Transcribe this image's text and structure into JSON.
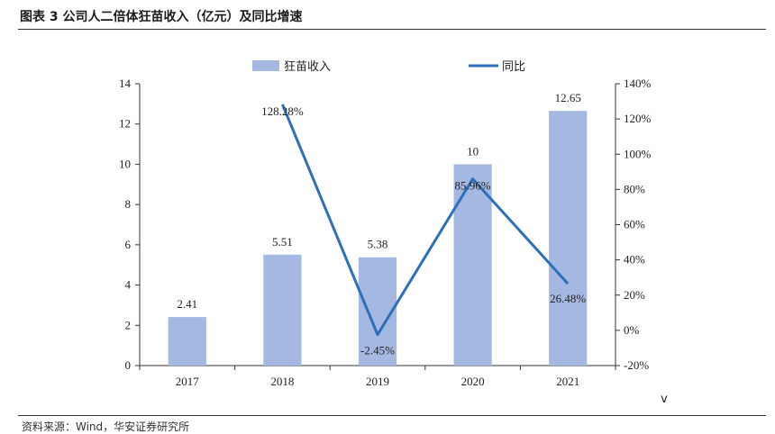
{
  "header": {
    "title": "图表 3 公司人二倍体狂苗收入（亿元）及同比增速"
  },
  "footer": {
    "source": "资料来源：Wind，华安证券研究所"
  },
  "colors": {
    "bar": "#a4b8e2",
    "line": "#2e6fba",
    "axis": "#333333",
    "text": "#222222"
  },
  "chart_data": {
    "type": "bar+line",
    "title": "",
    "categories": [
      "2017",
      "2018",
      "2019",
      "2020",
      "2021"
    ],
    "series": [
      {
        "name": "狂苗收入",
        "kind": "bar",
        "axis": "left",
        "values": [
          2.41,
          5.51,
          5.38,
          10,
          12.65
        ],
        "labels": [
          "2.41",
          "5.51",
          "5.38",
          "10",
          "12.65"
        ]
      },
      {
        "name": "同比",
        "kind": "line",
        "axis": "right",
        "values": [
          null,
          128.28,
          -2.45,
          85.96,
          26.48
        ],
        "labels": [
          "",
          "128.28%",
          "-2.45%",
          "85.96%",
          "26.48%"
        ]
      }
    ],
    "left_axis": {
      "min": 0,
      "max": 14,
      "ticks": [
        0,
        2,
        4,
        6,
        8,
        10,
        12,
        14
      ],
      "labels": [
        "0",
        "2",
        "4",
        "6",
        "8",
        "10",
        "12",
        "14"
      ]
    },
    "right_axis": {
      "min": -20,
      "max": 140,
      "ticks": [
        -20,
        0,
        20,
        40,
        60,
        80,
        100,
        120,
        140
      ],
      "labels": [
        "-20%",
        "0%",
        "20%",
        "40%",
        "60%",
        "80%",
        "100%",
        "120%",
        "140%"
      ]
    },
    "stray_mark": "v",
    "legend": "top-center",
    "grid": false
  }
}
